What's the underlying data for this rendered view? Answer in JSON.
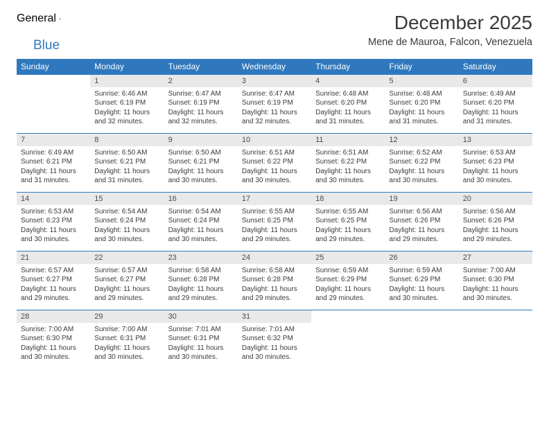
{
  "logo": {
    "part1": "General",
    "part2": "Blue"
  },
  "title": "December 2025",
  "location": "Mene de Mauroa, Falcon, Venezuela",
  "colors": {
    "header_bg": "#2f78bd",
    "header_text": "#ffffff",
    "daynum_bg": "#e9e9e9",
    "border": "#2f78bd",
    "text": "#3a3a3a",
    "logo_gray": "#6b6b6b",
    "logo_blue": "#2f78bd"
  },
  "day_names": [
    "Sunday",
    "Monday",
    "Tuesday",
    "Wednesday",
    "Thursday",
    "Friday",
    "Saturday"
  ],
  "weeks": [
    [
      null,
      {
        "n": "1",
        "sr": "6:46 AM",
        "ss": "6:19 PM",
        "dl": "11 hours and 32 minutes."
      },
      {
        "n": "2",
        "sr": "6:47 AM",
        "ss": "6:19 PM",
        "dl": "11 hours and 32 minutes."
      },
      {
        "n": "3",
        "sr": "6:47 AM",
        "ss": "6:19 PM",
        "dl": "11 hours and 32 minutes."
      },
      {
        "n": "4",
        "sr": "6:48 AM",
        "ss": "6:20 PM",
        "dl": "11 hours and 31 minutes."
      },
      {
        "n": "5",
        "sr": "6:48 AM",
        "ss": "6:20 PM",
        "dl": "11 hours and 31 minutes."
      },
      {
        "n": "6",
        "sr": "6:49 AM",
        "ss": "6:20 PM",
        "dl": "11 hours and 31 minutes."
      }
    ],
    [
      {
        "n": "7",
        "sr": "6:49 AM",
        "ss": "6:21 PM",
        "dl": "11 hours and 31 minutes."
      },
      {
        "n": "8",
        "sr": "6:50 AM",
        "ss": "6:21 PM",
        "dl": "11 hours and 31 minutes."
      },
      {
        "n": "9",
        "sr": "6:50 AM",
        "ss": "6:21 PM",
        "dl": "11 hours and 30 minutes."
      },
      {
        "n": "10",
        "sr": "6:51 AM",
        "ss": "6:22 PM",
        "dl": "11 hours and 30 minutes."
      },
      {
        "n": "11",
        "sr": "6:51 AM",
        "ss": "6:22 PM",
        "dl": "11 hours and 30 minutes."
      },
      {
        "n": "12",
        "sr": "6:52 AM",
        "ss": "6:22 PM",
        "dl": "11 hours and 30 minutes."
      },
      {
        "n": "13",
        "sr": "6:53 AM",
        "ss": "6:23 PM",
        "dl": "11 hours and 30 minutes."
      }
    ],
    [
      {
        "n": "14",
        "sr": "6:53 AM",
        "ss": "6:23 PM",
        "dl": "11 hours and 30 minutes."
      },
      {
        "n": "15",
        "sr": "6:54 AM",
        "ss": "6:24 PM",
        "dl": "11 hours and 30 minutes."
      },
      {
        "n": "16",
        "sr": "6:54 AM",
        "ss": "6:24 PM",
        "dl": "11 hours and 30 minutes."
      },
      {
        "n": "17",
        "sr": "6:55 AM",
        "ss": "6:25 PM",
        "dl": "11 hours and 29 minutes."
      },
      {
        "n": "18",
        "sr": "6:55 AM",
        "ss": "6:25 PM",
        "dl": "11 hours and 29 minutes."
      },
      {
        "n": "19",
        "sr": "6:56 AM",
        "ss": "6:26 PM",
        "dl": "11 hours and 29 minutes."
      },
      {
        "n": "20",
        "sr": "6:56 AM",
        "ss": "6:26 PM",
        "dl": "11 hours and 29 minutes."
      }
    ],
    [
      {
        "n": "21",
        "sr": "6:57 AM",
        "ss": "6:27 PM",
        "dl": "11 hours and 29 minutes."
      },
      {
        "n": "22",
        "sr": "6:57 AM",
        "ss": "6:27 PM",
        "dl": "11 hours and 29 minutes."
      },
      {
        "n": "23",
        "sr": "6:58 AM",
        "ss": "6:28 PM",
        "dl": "11 hours and 29 minutes."
      },
      {
        "n": "24",
        "sr": "6:58 AM",
        "ss": "6:28 PM",
        "dl": "11 hours and 29 minutes."
      },
      {
        "n": "25",
        "sr": "6:59 AM",
        "ss": "6:29 PM",
        "dl": "11 hours and 29 minutes."
      },
      {
        "n": "26",
        "sr": "6:59 AM",
        "ss": "6:29 PM",
        "dl": "11 hours and 30 minutes."
      },
      {
        "n": "27",
        "sr": "7:00 AM",
        "ss": "6:30 PM",
        "dl": "11 hours and 30 minutes."
      }
    ],
    [
      {
        "n": "28",
        "sr": "7:00 AM",
        "ss": "6:30 PM",
        "dl": "11 hours and 30 minutes."
      },
      {
        "n": "29",
        "sr": "7:00 AM",
        "ss": "6:31 PM",
        "dl": "11 hours and 30 minutes."
      },
      {
        "n": "30",
        "sr": "7:01 AM",
        "ss": "6:31 PM",
        "dl": "11 hours and 30 minutes."
      },
      {
        "n": "31",
        "sr": "7:01 AM",
        "ss": "6:32 PM",
        "dl": "11 hours and 30 minutes."
      },
      null,
      null,
      null
    ]
  ],
  "labels": {
    "sunrise": "Sunrise:",
    "sunset": "Sunset:",
    "daylight": "Daylight:"
  }
}
